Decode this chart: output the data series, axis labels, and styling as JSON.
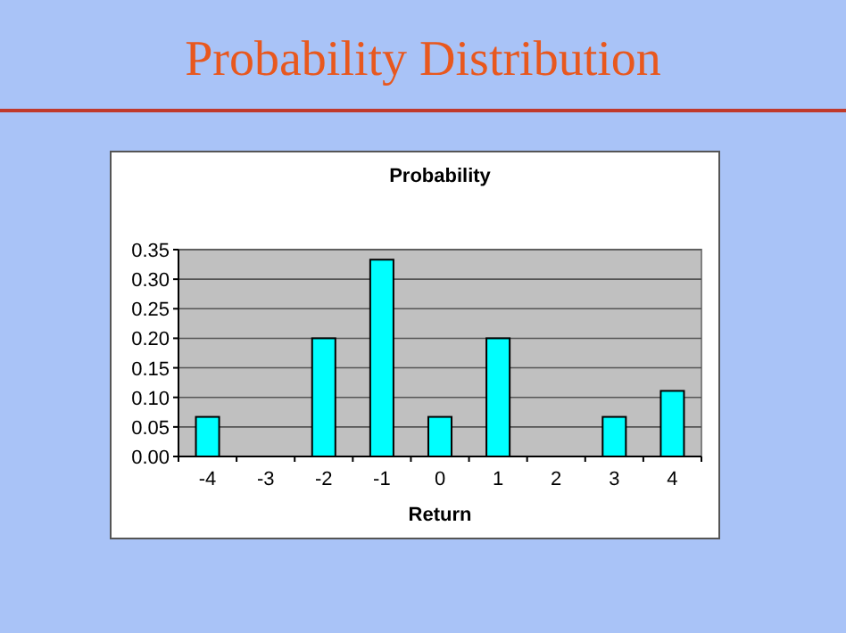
{
  "chart_data": {
    "type": "bar",
    "title": "Probability Distribution",
    "subtitle": "Probability",
    "xlabel": "Return",
    "categories": [
      "-4",
      "-3",
      "-2",
      "-1",
      "0",
      "1",
      "2",
      "3",
      "4"
    ],
    "values": [
      0.067,
      0,
      0.2,
      0.333,
      0.067,
      0.2,
      0,
      0.067,
      0.111
    ],
    "color": "#00ffff",
    "ylim": [
      0,
      0.35
    ],
    "yticks": [
      {
        "value": 0,
        "label": "0.00"
      },
      {
        "value": 0.05,
        "label": "0.05"
      },
      {
        "value": 0.1,
        "label": "0.10"
      },
      {
        "value": 0.15,
        "label": "0.15"
      },
      {
        "value": 0.2,
        "label": "0.20"
      },
      {
        "value": 0.25,
        "label": "0.25"
      },
      {
        "value": 0.3,
        "label": "0.30"
      },
      {
        "value": 0.35,
        "label": "0.35"
      }
    ],
    "grid": "y"
  }
}
